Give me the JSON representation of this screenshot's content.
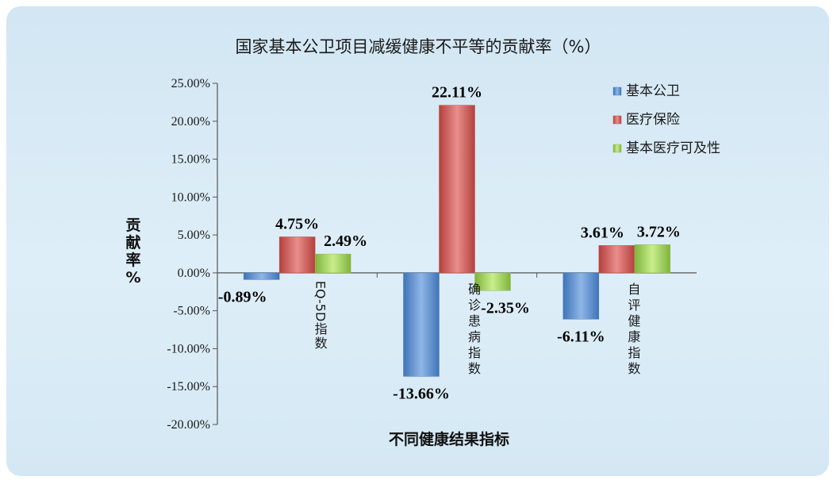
{
  "chart_data": {
    "type": "bar",
    "title": "国家基本公卫项目减缓健康不平等的贡献率（%）",
    "xlabel": "不同健康结果指标",
    "ylabel": "贡献率%",
    "categories": [
      "EQ-5D指数",
      "确诊患病指数",
      "自评健康指数"
    ],
    "series": [
      {
        "name": "基本公卫",
        "values": [
          -0.89,
          -13.66,
          -6.11
        ],
        "labels": [
          "-0.89%",
          "-13.66%",
          "-6.11%"
        ],
        "color": "#4f81bd"
      },
      {
        "name": "医疗保险",
        "values": [
          4.75,
          22.11,
          3.61
        ],
        "labels": [
          "4.75%",
          "22.11%",
          "3.61%"
        ],
        "color": "#c0504d"
      },
      {
        "name": "基本医疗可及性",
        "values": [
          2.49,
          -2.35,
          3.72
        ],
        "labels": [
          "2.49%",
          "-2.35%",
          "3.72%"
        ],
        "color": "#9bbb59"
      }
    ],
    "ylim": [
      -20,
      25
    ],
    "yticks": [
      25,
      20,
      15,
      10,
      5,
      0,
      -5,
      -10,
      -15,
      -20
    ],
    "ytick_labels": [
      "25.00%",
      "20.00%",
      "15.00%",
      "10.00%",
      "5.00%",
      "0.00%",
      "-5.00%",
      "-10.00%",
      "-15.00%",
      "-20.00%"
    ],
    "legend_position": "top-right",
    "grid": false
  }
}
